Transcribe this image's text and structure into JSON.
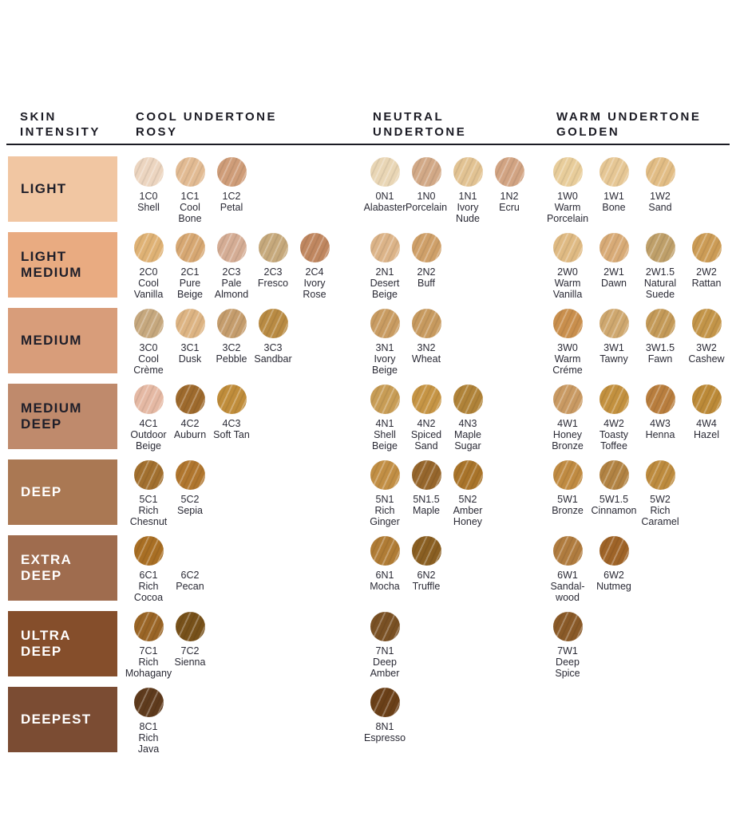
{
  "header": {
    "skin_intensity": "SKIN\nINTENSITY",
    "cool": "COOL UNDERTONE\nROSY",
    "neutral": "NEUTRAL\nUNDERTONE",
    "warm": "WARM UNDERTONE\nGOLDEN"
  },
  "rows": [
    {
      "intensity": "LIGHT",
      "block_color": "#f1c6a2",
      "text_style": "dark",
      "cool": [
        {
          "code": "1C0",
          "name": "Shell",
          "color": "#ecd5c0"
        },
        {
          "code": "1C1",
          "name": "Cool Bone",
          "color": "#e2bb93"
        },
        {
          "code": "1C2",
          "name": "Petal",
          "color": "#cf9d79"
        }
      ],
      "neutral": [
        {
          "code": "0N1",
          "name": "Alabaster",
          "color": "#e9d6b5"
        },
        {
          "code": "1N0",
          "name": "Porcelain",
          "color": "#d2a987"
        },
        {
          "code": "1N1",
          "name": "Ivory Nude",
          "color": "#e2c393"
        },
        {
          "code": "1N2",
          "name": "Ecru",
          "color": "#d2a483"
        }
      ],
      "warm": [
        {
          "code": "1W0",
          "name": "Warm Porcelain",
          "color": "#e8cd9b"
        },
        {
          "code": "1W1",
          "name": "Bone",
          "color": "#e6c795"
        },
        {
          "code": "1W2",
          "name": "Sand",
          "color": "#e2bd85"
        }
      ]
    },
    {
      "intensity": "LIGHT\nMEDIUM",
      "block_color": "#e9ab81",
      "text_style": "dark",
      "cool": [
        {
          "code": "2C0",
          "name": "Cool Vanilla",
          "color": "#dfb275"
        },
        {
          "code": "2C1",
          "name": "Pure Beige",
          "color": "#d7a873"
        },
        {
          "code": "2C3",
          "name": "Pale Almond",
          "color": "#d5ad95"
        },
        {
          "code": "2C3",
          "name": "Fresco",
          "color": "#c6a97c"
        },
        {
          "code": "2C4",
          "name": "Ivory Rose",
          "color": "#c08760"
        }
      ],
      "neutral": [
        {
          "code": "2N1",
          "name": "Desert Beige",
          "color": "#dcb489"
        },
        {
          "code": "2N2",
          "name": "Buff",
          "color": "#cfa069"
        }
      ],
      "warm": [
        {
          "code": "2W0",
          "name": "Warm Vanilla",
          "color": "#dfba83"
        },
        {
          "code": "2W1",
          "name": "Dawn",
          "color": "#d8ab77"
        },
        {
          "code": "2W1.5",
          "name": "Natural Suede",
          "color": "#bfa06a"
        },
        {
          "code": "2W2",
          "name": "Rattan",
          "color": "#cc9c56"
        }
      ]
    },
    {
      "intensity": "MEDIUM",
      "block_color": "#d89d7a",
      "text_style": "dark",
      "cool": [
        {
          "code": "3C0",
          "name": "Cool Crème",
          "color": "#c6a87e"
        },
        {
          "code": "3C1",
          "name": "Dusk",
          "color": "#ddb483"
        },
        {
          "code": "3C2",
          "name": "Pebble",
          "color": "#c59d6d"
        },
        {
          "code": "3C3",
          "name": "Sandbar",
          "color": "#b98b43"
        }
      ],
      "neutral": [
        {
          "code": "3N1",
          "name": "Ivory Beige",
          "color": "#c99c62"
        },
        {
          "code": "3N2",
          "name": "Wheat",
          "color": "#c79a5f"
        }
      ],
      "warm": [
        {
          "code": "3W0",
          "name": "Warm Créme",
          "color": "#c98f4d"
        },
        {
          "code": "3W1",
          "name": "Tawny",
          "color": "#cfa86f"
        },
        {
          "code": "3W1.5",
          "name": "Fawn",
          "color": "#c49a58"
        },
        {
          "code": "3W2",
          "name": "Cashew",
          "color": "#c39549"
        }
      ]
    },
    {
      "intensity": "MEDIUM\nDEEP",
      "block_color": "#bf8a6c",
      "text_style": "dark",
      "cool": [
        {
          "code": "4C1",
          "name": "Outdoor Beige",
          "color": "#e5b9a4"
        },
        {
          "code": "4C2",
          "name": "Auburn",
          "color": "#9e6a2d"
        },
        {
          "code": "4C3",
          "name": "Soft Tan",
          "color": "#c08d3b"
        }
      ],
      "neutral": [
        {
          "code": "4N1",
          "name": "Shell Beige",
          "color": "#c89d56"
        },
        {
          "code": "4N2",
          "name": "Spiced Sand",
          "color": "#c69545"
        },
        {
          "code": "4N3",
          "name": "Maple Sugar",
          "color": "#b08339"
        }
      ],
      "warm": [
        {
          "code": "4W1",
          "name": "Honey Bronze",
          "color": "#c99a63"
        },
        {
          "code": "4W2",
          "name": "Toasty Toffee",
          "color": "#c3913f"
        },
        {
          "code": "4W3",
          "name": "Henna",
          "color": "#b97e3e"
        },
        {
          "code": "4W4",
          "name": "Hazel",
          "color": "#bc8a38"
        }
      ]
    },
    {
      "intensity": "DEEP",
      "block_color": "#aa7853",
      "text_style": "light",
      "cool": [
        {
          "code": "5C1",
          "name": "Rich Chesnut",
          "color": "#a2702f"
        },
        {
          "code": "5C2",
          "name": "Sepia",
          "color": "#b0762e"
        }
      ],
      "neutral": [
        {
          "code": "5N1",
          "name": "Rich Ginger",
          "color": "#c28f45"
        },
        {
          "code": "5N1.5",
          "name": "Maple",
          "color": "#96662c"
        },
        {
          "code": "5N2",
          "name": "Amber Honey",
          "color": "#a9742a"
        }
      ],
      "warm": [
        {
          "code": "5W1",
          "name": "Bronze",
          "color": "#c08b42"
        },
        {
          "code": "5W1.5",
          "name": "Cinnamon",
          "color": "#b28343"
        },
        {
          "code": "5W2",
          "name": "Rich Caramel",
          "color": "#bd8b3e"
        }
      ]
    },
    {
      "intensity": "EXTRA\nDEEP",
      "block_color": "#9f6c4e",
      "text_style": "light",
      "cool": [
        {
          "code": "6C1",
          "name": "Rich Cocoa",
          "color": "#a96f24"
        },
        {
          "code": "6C2",
          "name": "Pecan",
          "color": null,
          "no_swatch": true
        }
      ],
      "neutral": [
        {
          "code": "6N1",
          "name": "Mocha",
          "color": "#b07c35"
        },
        {
          "code": "6N2",
          "name": "Truffle",
          "color": "#8a5f22"
        }
      ],
      "warm": [
        {
          "code": "6W1",
          "name": "Sandal- wood",
          "color": "#b07c3f"
        },
        {
          "code": "6W2",
          "name": "Nutmeg",
          "color": "#9f6428"
        }
      ]
    },
    {
      "intensity": "ULTRA\nDEEP",
      "block_color": "#854e2b",
      "text_style": "light",
      "cool": [
        {
          "code": "7C1",
          "name": "Rich Mohagany",
          "color": "#9a6526"
        },
        {
          "code": "7C2",
          "name": "Sienna",
          "color": "#77511a"
        }
      ],
      "neutral": [
        {
          "code": "7N1",
          "name": "Deep Amber",
          "color": "#7a5124"
        }
      ],
      "warm": [
        {
          "code": "7W1",
          "name": "Deep Spice",
          "color": "#8a5a28"
        }
      ]
    },
    {
      "intensity": "DEEPEST",
      "block_color": "#7b4c33",
      "text_style": "light",
      "cool": [
        {
          "code": "8C1",
          "name": "Rich Java",
          "color": "#5f3b1d"
        }
      ],
      "neutral": [
        {
          "code": "8N1",
          "name": "Espresso",
          "color": "#6b4018"
        }
      ],
      "warm": []
    }
  ]
}
